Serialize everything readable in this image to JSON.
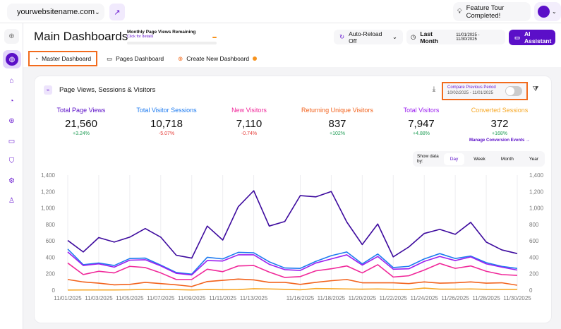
{
  "topbar": {
    "site": "yourwebsitename.com",
    "feature_tour": "Feature Tour Completed!"
  },
  "sidebar": {
    "items": [
      "collapse",
      "dashboards",
      "pages",
      "segments",
      "heatmaps",
      "messages",
      "security",
      "settings",
      "account"
    ]
  },
  "header": {
    "title": "Main Dashboards",
    "page_views_title": "Monthly Page Views Remaining",
    "page_views_link": "Click for details",
    "page_views_remaining_fraction": 0.05,
    "auto_reload": "Auto-Reload Off",
    "period": "Last Month",
    "date_range": "11/01/2025 - 11/30/2025",
    "ai_assistant": "AI Assistant"
  },
  "tabs": [
    {
      "label": "Master Dashboard",
      "active": true
    },
    {
      "label": "Pages Dashboard"
    },
    {
      "label": "Create New Dashboard"
    }
  ],
  "card": {
    "title": "Page Views, Sessions & Visitors",
    "compare_label": "Compare Previous Period",
    "compare_range": "10/02/2025 - 11/01/2025",
    "compare_on": false,
    "metrics": [
      {
        "name": "Total Page Views",
        "value": "21,560",
        "change": "+3.24%",
        "color": "#5b0fc8",
        "dir": "up"
      },
      {
        "name": "Total Visitor Sessions",
        "value": "10,718",
        "change": "-5.07%",
        "color": "#1e7bf0",
        "dir": "down"
      },
      {
        "name": "New Visitors",
        "value": "7,110",
        "change": "-0.74%",
        "color": "#f0289a",
        "dir": "down"
      },
      {
        "name": "Returning Unique Visitors",
        "value": "837",
        "change": "+102%",
        "color": "#f2621c",
        "dir": "up"
      },
      {
        "name": "Total Visitors",
        "value": "7,947",
        "change": "+4.88%",
        "color": "#9b1ff0",
        "dir": "up"
      },
      {
        "name": "Converted Sessions",
        "value": "372",
        "change": "+168%",
        "color": "#f7a928",
        "dir": "up"
      }
    ],
    "manage_link": "Manage Conversion Events →",
    "show_by_label": "Show data by:",
    "show_by_options": [
      "Day",
      "Week",
      "Month",
      "Year"
    ],
    "show_by_selected": "Day"
  },
  "chart_data": {
    "type": "line",
    "ylim": [
      0,
      1400
    ],
    "yticks": [
      "0",
      "200",
      "400",
      "600",
      "800",
      "1,000",
      "1,200",
      "1,400"
    ],
    "xtick_labels": [
      "11/01/2025",
      "11/03/2025",
      "11/05/2025",
      "11/07/2025",
      "11/09/2025",
      "11/11/2025",
      "11/13/2025",
      "11/16/2025",
      "11/18/2025",
      "11/20/2025",
      "11/22/2025",
      "11/24/2025",
      "11/26/2025",
      "11/28/2025",
      "11/30/2025"
    ],
    "xtick_days": [
      1,
      3,
      5,
      7,
      9,
      11,
      13,
      16,
      18,
      20,
      22,
      24,
      26,
      28,
      30
    ],
    "days": [
      1,
      2,
      3,
      4,
      5,
      6,
      7,
      8,
      9,
      10,
      11,
      12,
      13,
      14,
      15,
      16,
      17,
      18,
      19,
      20,
      21,
      22,
      23,
      24,
      25,
      26,
      27,
      28,
      29,
      30
    ],
    "series": [
      {
        "name": "Converted Sessions",
        "color": "#f7a928",
        "values": [
          2,
          3,
          3,
          3,
          5,
          10,
          8,
          7,
          3,
          8,
          6,
          7,
          18,
          15,
          10,
          5,
          20,
          18,
          15,
          12,
          15,
          10,
          8,
          25,
          12,
          12,
          15,
          10,
          10,
          10
        ]
      },
      {
        "name": "Returning Unique Visitors",
        "color": "#f2621c",
        "values": [
          130,
          100,
          85,
          65,
          70,
          95,
          80,
          65,
          45,
          105,
          120,
          135,
          125,
          95,
          95,
          70,
          95,
          115,
          130,
          90,
          90,
          90,
          80,
          100,
          85,
          90,
          100,
          85,
          90,
          60
        ]
      },
      {
        "name": "New Visitors",
        "color": "#f0289a",
        "values": [
          330,
          190,
          230,
          210,
          290,
          275,
          210,
          130,
          130,
          255,
          225,
          295,
          300,
          220,
          155,
          165,
          235,
          260,
          295,
          210,
          310,
          160,
          175,
          245,
          325,
          265,
          295,
          230,
          190,
          180
        ]
      },
      {
        "name": "Total Visitor Sessions",
        "color": "#1e7bf0",
        "values": [
          500,
          310,
          330,
          300,
          385,
          390,
          305,
          215,
          195,
          400,
          380,
          460,
          455,
          345,
          270,
          265,
          350,
          420,
          465,
          320,
          440,
          275,
          290,
          380,
          445,
          385,
          415,
          335,
          290,
          265
        ]
      },
      {
        "name": "Total Visitors",
        "color": "#9b1ff0",
        "values": [
          465,
          300,
          320,
          280,
          365,
          370,
          295,
          205,
          185,
          360,
          355,
          430,
          430,
          315,
          250,
          240,
          330,
          380,
          430,
          305,
          410,
          255,
          260,
          350,
          410,
          360,
          405,
          320,
          280,
          245
        ]
      },
      {
        "name": "Total Page Views",
        "color": "#3d0a9e",
        "values": [
          605,
          465,
          640,
          585,
          645,
          750,
          645,
          425,
          390,
          780,
          610,
          1015,
          1210,
          780,
          835,
          1150,
          1135,
          1200,
          830,
          555,
          805,
          405,
          525,
          690,
          740,
          680,
          825,
          585,
          490,
          445
        ]
      }
    ]
  }
}
